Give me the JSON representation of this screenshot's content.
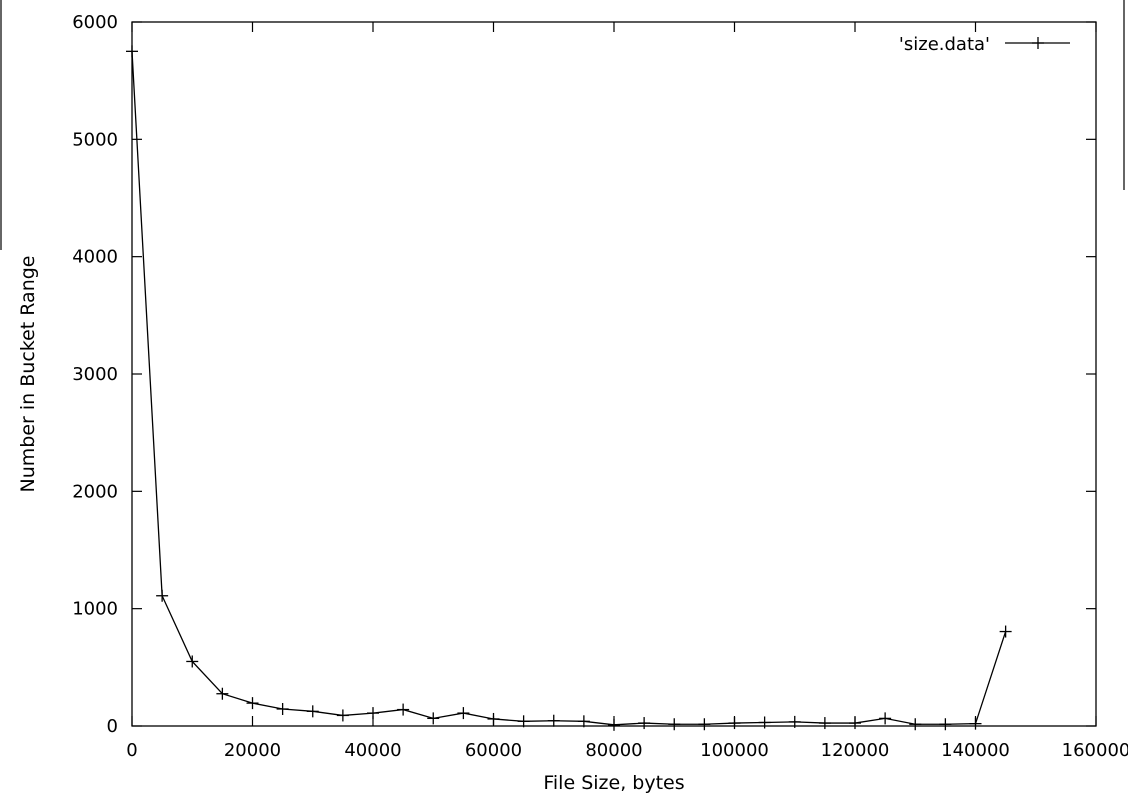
{
  "chart_data": {
    "type": "line",
    "xlabel": "File Size, bytes",
    "ylabel": "Number in Bucket Range",
    "xlim": [
      0,
      160000
    ],
    "ylim": [
      0,
      6000
    ],
    "xticks": [
      0,
      20000,
      40000,
      60000,
      80000,
      100000,
      120000,
      140000,
      160000
    ],
    "xtick_labels": [
      "0",
      "20000",
      "40000",
      "60000",
      "80000",
      "100000",
      "120000",
      "140000",
      "160000"
    ],
    "yticks": [
      0,
      1000,
      2000,
      3000,
      4000,
      5000,
      6000
    ],
    "ytick_labels": [
      "0",
      "1000",
      "2000",
      "3000",
      "4000",
      "5000",
      "6000"
    ],
    "grid": false,
    "legend_position": "top-right",
    "series": [
      {
        "name": "'size.data'",
        "marker": "plus",
        "color": "#000000",
        "x": [
          0,
          5000,
          10000,
          15000,
          20000,
          25000,
          30000,
          35000,
          40000,
          45000,
          50000,
          55000,
          60000,
          65000,
          70000,
          75000,
          80000,
          85000,
          90000,
          95000,
          100000,
          105000,
          110000,
          115000,
          120000,
          125000,
          130000,
          135000,
          140000,
          145000
        ],
        "y": [
          5750,
          1110,
          550,
          275,
          195,
          145,
          125,
          90,
          110,
          140,
          65,
          110,
          60,
          40,
          45,
          40,
          10,
          25,
          15,
          15,
          25,
          30,
          35,
          25,
          25,
          65,
          15,
          15,
          20,
          805
        ]
      }
    ]
  }
}
